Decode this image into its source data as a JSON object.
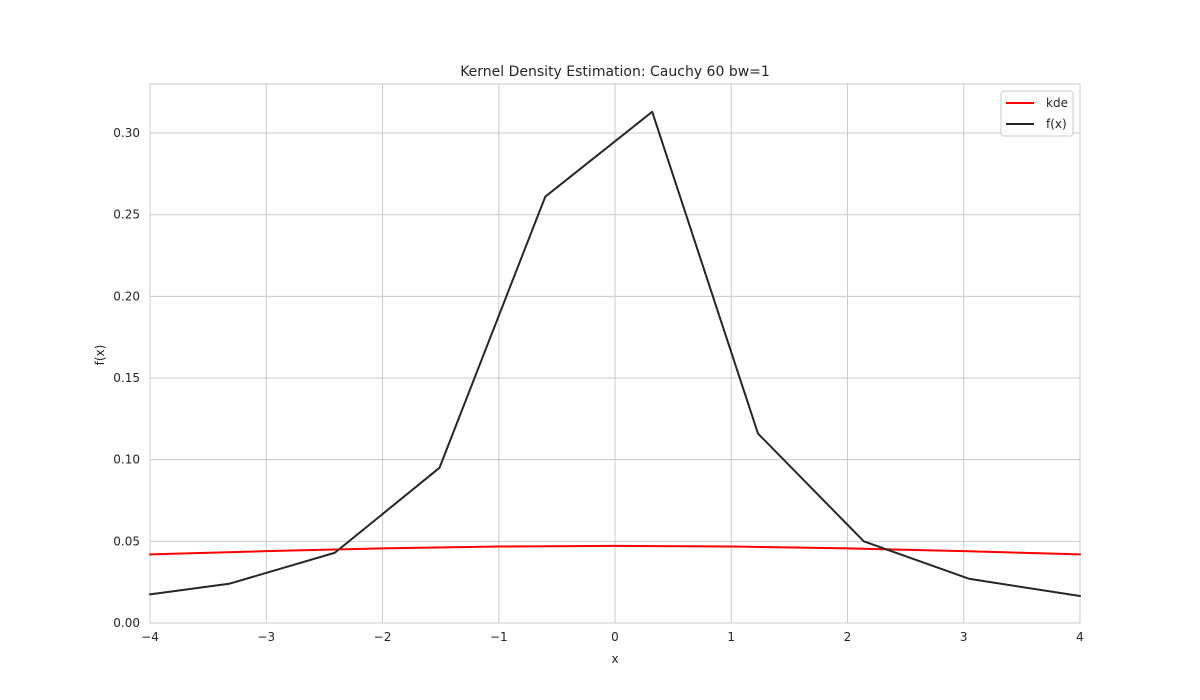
{
  "chart_data": {
    "type": "line",
    "title": "Kernel Density Estimation: Cauchy 60 bw=1",
    "xlabel": "x",
    "ylabel": "f(x)",
    "xlim": [
      -4,
      4
    ],
    "ylim": [
      0,
      0.33
    ],
    "xticks": [
      -4,
      -3,
      -2,
      -1,
      0,
      1,
      2,
      3,
      4
    ],
    "xtick_labels": [
      "−4",
      "−3",
      "−2",
      "−1",
      "0",
      "1",
      "2",
      "3",
      "4"
    ],
    "yticks": [
      0,
      0.05,
      0.1,
      0.15,
      0.2,
      0.25,
      0.3
    ],
    "ytick_labels": [
      "0.00",
      "0.05",
      "0.10",
      "0.15",
      "0.20",
      "0.25",
      "0.30"
    ],
    "grid": true,
    "legend_position": "top-right",
    "series": [
      {
        "name": "kde",
        "color": "#ff0000",
        "x": [
          -4,
          -3,
          -2,
          -1,
          0,
          1,
          2,
          3,
          4
        ],
        "y": [
          0.042,
          0.044,
          0.0457,
          0.0468,
          0.0472,
          0.0468,
          0.0457,
          0.044,
          0.042
        ]
      },
      {
        "name": "f(x)",
        "color": "#262626",
        "x": [
          -4,
          -3.32,
          -2.41,
          -1.51,
          -0.6,
          0.32,
          1.23,
          2.14,
          3.05,
          4
        ],
        "y": [
          0.0175,
          0.024,
          0.043,
          0.095,
          0.261,
          0.313,
          0.116,
          0.05,
          0.027,
          0.0165
        ]
      }
    ]
  }
}
